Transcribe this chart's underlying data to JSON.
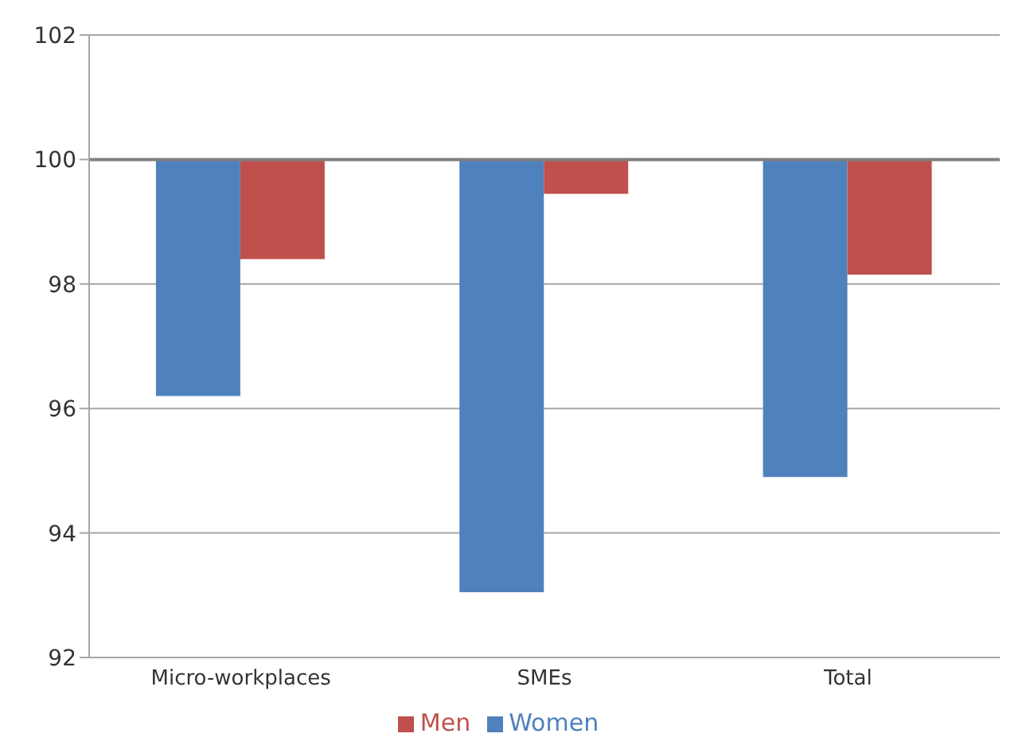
{
  "chart_data": {
    "type": "bar",
    "categories": [
      "Micro-workplaces",
      "SMEs",
      "Total"
    ],
    "series": [
      {
        "name": "Women",
        "color": "#4f81bd",
        "base": [
          100,
          100,
          100
        ],
        "values": [
          -3.8,
          -6.95,
          -5.1
        ]
      },
      {
        "name": "Men",
        "color": "#c0504d",
        "base": [
          100,
          100,
          100
        ],
        "values": [
          -1.6,
          -0.55,
          -1.85
        ]
      }
    ],
    "ylim": [
      92,
      102
    ],
    "yticks": [
      92,
      94,
      96,
      98,
      100,
      102
    ],
    "grid": "y",
    "legend": "bottom",
    "ref_lines": [
      {
        "axis": "y",
        "value": 100
      }
    ]
  }
}
